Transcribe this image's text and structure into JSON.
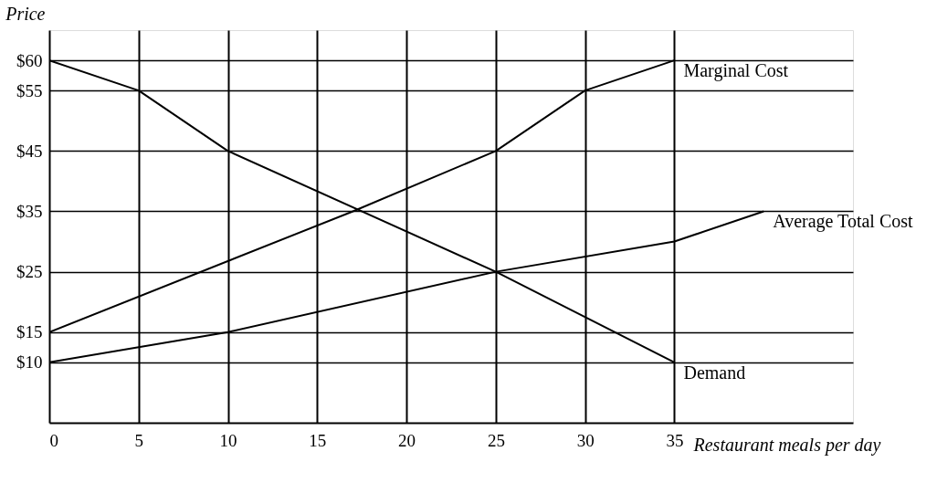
{
  "chart_data": {
    "type": "line",
    "xlabel": "Restaurant meals per day",
    "ylabel": "Price",
    "xlim": [
      0,
      45
    ],
    "xticks": [
      0,
      5,
      10,
      15,
      20,
      25,
      30,
      35
    ],
    "ylim": [
      0,
      65
    ],
    "yticks": [
      {
        "value": 10,
        "label": "$10"
      },
      {
        "value": 15,
        "label": "$15"
      },
      {
        "value": 25,
        "label": "$25"
      },
      {
        "value": 35,
        "label": "$35"
      },
      {
        "value": 45,
        "label": "$45"
      },
      {
        "value": 55,
        "label": "$55"
      },
      {
        "value": 60,
        "label": "$60"
      }
    ],
    "grid": true,
    "legend": false,
    "marker": "none",
    "line_style": "solid",
    "series": [
      {
        "name": "Marginal Cost",
        "color": "#000000",
        "x": [
          0,
          17,
          25,
          30,
          35
        ],
        "values": [
          15,
          35,
          45,
          55,
          60
        ]
      },
      {
        "name": "Average Total Cost",
        "color": "#000000",
        "x": [
          0,
          10,
          25,
          35,
          40
        ],
        "values": [
          10,
          15,
          25,
          30,
          35
        ]
      },
      {
        "name": "Demand",
        "color": "#000000",
        "x": [
          0,
          5,
          10,
          25,
          35
        ],
        "values": [
          60,
          55,
          45,
          25,
          10
        ]
      }
    ]
  }
}
